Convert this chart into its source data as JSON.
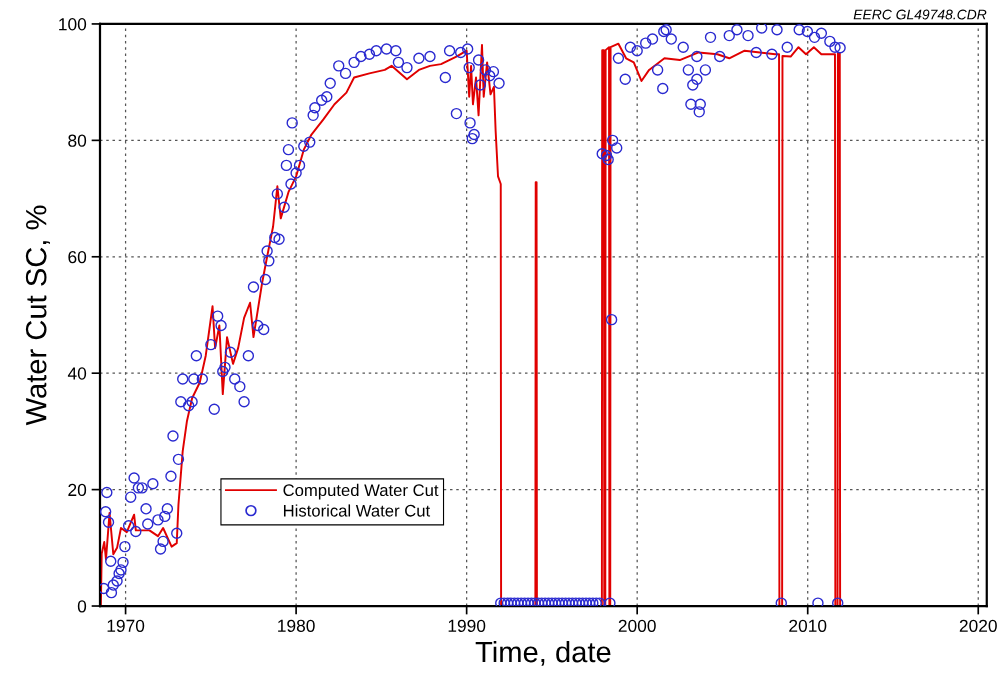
{
  "chart_data": {
    "type": "line",
    "xlabel": "Time, date",
    "ylabel": "Water Cut SC, %",
    "annotations": [
      "EERC GL49748.CDR"
    ],
    "xlim": [
      1968.5,
      2020.5
    ],
    "xticks": [
      1970,
      1980,
      1990,
      2000,
      2010,
      2020
    ],
    "ylim": [
      0,
      100
    ],
    "yticks": [
      0,
      20,
      40,
      60,
      80,
      100
    ],
    "grid": true,
    "legend": "bottom left",
    "series": [
      {
        "name": "Computed Water Cut",
        "type": "line",
        "color": "#e00000",
        "line_style": "solid",
        "x": [
          1968.55,
          1968.6,
          1968.75,
          1968.85,
          1969.06,
          1969.28,
          1969.5,
          1969.73,
          1970.07,
          1970.5,
          1970.6,
          1971.4,
          1971.9,
          1972.2,
          1972.7,
          1973.0,
          1973.1,
          1973.35,
          1973.6,
          1973.9,
          1974.35,
          1974.7,
          1975.1,
          1975.25,
          1975.5,
          1975.7,
          1975.95,
          1976.3,
          1976.6,
          1976.95,
          1977.3,
          1977.5,
          1977.75,
          1978.0,
          1978.3,
          1978.65,
          1978.9,
          1979.1,
          1979.55,
          1980.0,
          1980.45,
          1980.9,
          1981.6,
          1982.25,
          1982.95,
          1983.4,
          1984.3,
          1985.2,
          1985.6,
          1986.5,
          1987.2,
          1987.85,
          1988.5,
          1989.4,
          1990.0,
          1990.15,
          1990.26,
          1990.37,
          1990.55,
          1990.7,
          1990.9,
          1991.0,
          1991.2,
          1991.4,
          1991.6,
          1991.7,
          1991.84,
          1992.0,
          1992.02,
          1994.03,
          1994.05,
          1994.1,
          1994.12,
          1997.93,
          1997.95,
          1998.05,
          1998.07,
          1998.13,
          1998.15,
          1998.35,
          1998.37,
          1998.42,
          1998.44,
          1998.9,
          1999.35,
          1999.8,
          2000.25,
          2000.7,
          2001.6,
          2002.5,
          2003.6,
          2004.7,
          2005.4,
          2006.3,
          2007.2,
          2008.1,
          2008.32,
          2008.34,
          2008.5,
          2008.52,
          2009.0,
          2009.46,
          2009.9,
          2010.36,
          2010.8,
          2011.6,
          2011.62,
          2011.75,
          2011.77,
          2011.88,
          2011.9
        ],
        "values": [
          0,
          9,
          11,
          8,
          16,
          8.9,
          10,
          13.4,
          12.7,
          15.7,
          13,
          13,
          12,
          13.4,
          10.2,
          10.8,
          17.4,
          26.6,
          31.8,
          35.7,
          38.4,
          43,
          51.5,
          44.3,
          48.2,
          36.4,
          46.2,
          41.6,
          44.3,
          49.5,
          52.1,
          46.2,
          50.8,
          55.4,
          60,
          65.2,
          72.1,
          66.6,
          71.1,
          73.8,
          78.4,
          81,
          83.6,
          86.2,
          88.2,
          90.8,
          91.5,
          92.1,
          92.8,
          90.5,
          92.1,
          92.8,
          93.1,
          94.4,
          95.4,
          87.5,
          92.8,
          86.2,
          90.8,
          84.3,
          96.4,
          87.5,
          93.4,
          87.9,
          89.2,
          81.6,
          73.8,
          72.5,
          0,
          0,
          72.8,
          72.8,
          0,
          0,
          95.5,
          95.5,
          0,
          0,
          95.5,
          96,
          0,
          0,
          96,
          96.6,
          94.1,
          93.4,
          90.2,
          92.1,
          94.1,
          93.8,
          95.1,
          94.8,
          94.1,
          95.4,
          95.1,
          94.8,
          94.8,
          0,
          0,
          94.5,
          94.4,
          96,
          94.8,
          96,
          94.8,
          94.8,
          0,
          0,
          95,
          95,
          0
        ]
      },
      {
        "name": "Historical Water Cut",
        "type": "scatter",
        "color": "#2a2ad0",
        "marker": "circle",
        "x": [
          1968.72,
          1968.83,
          1968.9,
          1969.0,
          1969.13,
          1969.17,
          1969.28,
          1969.5,
          1969.62,
          1969.73,
          1969.85,
          1969.96,
          1970.18,
          1970.3,
          1970.5,
          1970.6,
          1970.75,
          1970.97,
          1971.2,
          1971.3,
          1971.6,
          1971.9,
          1972.05,
          1972.2,
          1972.3,
          1972.45,
          1972.66,
          1972.78,
          1973.0,
          1973.1,
          1973.24,
          1973.35,
          1973.7,
          1973.9,
          1974.0,
          1974.15,
          1974.5,
          1975.0,
          1975.2,
          1975.4,
          1975.6,
          1975.7,
          1975.83,
          1976.15,
          1976.4,
          1976.7,
          1976.95,
          1977.2,
          1977.5,
          1977.75,
          1978.1,
          1978.2,
          1978.3,
          1978.4,
          1978.75,
          1979.0,
          1978.9,
          1979.3,
          1979.43,
          1979.55,
          1979.7,
          1979.77,
          1980.0,
          1980.2,
          1980.45,
          1980.8,
          1981.0,
          1981.1,
          1981.5,
          1981.8,
          1982.0,
          1982.5,
          1982.9,
          1983.4,
          1983.8,
          1984.3,
          1984.7,
          1985.3,
          1985.85,
          1986.0,
          1986.5,
          1987.2,
          1987.85,
          1988.75,
          1989.0,
          1989.4,
          1989.65,
          1990.06,
          1990.15,
          1990.2,
          1990.44,
          1990.33,
          1990.7,
          1990.8,
          1991.1,
          1991.35,
          1991.57,
          1991.9,
          1992.0,
          1992.2,
          1992.4,
          1992.6,
          1992.8,
          1993.0,
          1993.2,
          1993.4,
          1993.6,
          1993.8,
          1994.0,
          1994.2,
          1994.4,
          1994.6,
          1994.8,
          1995.0,
          1995.2,
          1995.4,
          1995.6,
          1995.8,
          1996.0,
          1996.2,
          1996.4,
          1996.6,
          1996.8,
          1997.0,
          1997.2,
          1997.4,
          1997.6,
          1997.8,
          1997.95,
          1998.2,
          1998.3,
          1998.56,
          1998.8,
          1998.5,
          1998.4,
          1998.9,
          1999.3,
          1999.6,
          2000.0,
          2000.5,
          2000.9,
          2001.2,
          2001.5,
          2001.7,
          2001.56,
          2002.0,
          2002.7,
          2003.0,
          2003.26,
          2003.5,
          2003.15,
          2003.64,
          2003.7,
          2004.0,
          2003.5,
          2004.3,
          2004.84,
          2005.4,
          2005.85,
          2006.5,
          2006.98,
          2007.3,
          2007.9,
          2008.2,
          2008.8,
          2009.5,
          2009.98,
          2010.4,
          2010.8,
          2011.3,
          2011.6,
          2011.9,
          2008.45,
          2010.6,
          2011.76
        ],
        "values": [
          3,
          16.2,
          19.5,
          14.4,
          7.7,
          2.3,
          3.6,
          4.3,
          5.6,
          6.2,
          7.5,
          10.2,
          13.8,
          18.7,
          22,
          12.8,
          20.3,
          20.3,
          16.7,
          14.1,
          21,
          14.8,
          9.8,
          11.1,
          15.4,
          16.7,
          22.3,
          29.2,
          12.5,
          25.2,
          35.1,
          39,
          34.4,
          35.1,
          39,
          43,
          39,
          44.9,
          33.8,
          49.8,
          48.2,
          40.3,
          41,
          43.6,
          39,
          37.7,
          35.1,
          43,
          54.8,
          48.2,
          47.5,
          56.1,
          61,
          59.3,
          63.3,
          63,
          70.8,
          68.5,
          75.7,
          78.4,
          72.5,
          83,
          74.4,
          75.7,
          79,
          79.7,
          84.3,
          85.6,
          86.9,
          87.5,
          89.8,
          92.8,
          91.5,
          93.4,
          94.4,
          94.8,
          95.4,
          95.7,
          95.4,
          93.4,
          92.5,
          94.1,
          94.4,
          90.8,
          95.4,
          84.6,
          95.1,
          95.7,
          92.5,
          83,
          81,
          80.3,
          93.8,
          89.5,
          92.1,
          91.1,
          91.8,
          89.8,
          0.5,
          0.5,
          0.5,
          0.5,
          0.5,
          0.5,
          0.5,
          0.5,
          0.5,
          0.5,
          0.5,
          0.5,
          0.5,
          0.5,
          0.5,
          0.5,
          0.5,
          0.5,
          0.5,
          0.5,
          0.5,
          0.5,
          0.5,
          0.5,
          0.5,
          0.5,
          0.5,
          0.5,
          0.5,
          0.5,
          77.7,
          77.4,
          76.7,
          80,
          78.7,
          49.2,
          0.5,
          94.1,
          90.5,
          96,
          95.4,
          96.7,
          97.4,
          92.1,
          88.9,
          99,
          98.7,
          97.4,
          96,
          92.1,
          89.5,
          90.5,
          86.2,
          84.9,
          86.2,
          92.1,
          94.4,
          97.7,
          94.4,
          98,
          99,
          98,
          95.1,
          99.3,
          94.8,
          99,
          96,
          99,
          98.7,
          97.7,
          98.4,
          97,
          96,
          95.9,
          0.5,
          0.5,
          0.5
        ]
      }
    ]
  }
}
